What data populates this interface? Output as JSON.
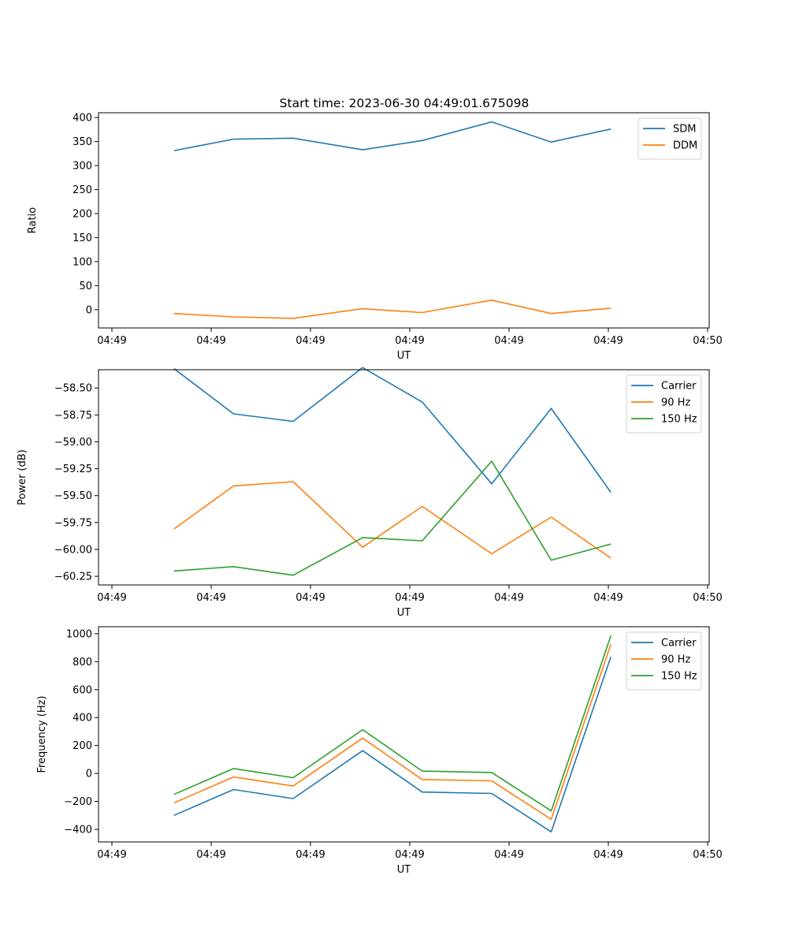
{
  "title": "Start time: 2023-06-30 04:49:01.675098",
  "chart_data": [
    {
      "type": "line",
      "title": "Start time: 2023-06-30 04:49:01.675098",
      "xlabel": "UT",
      "ylabel": "Ratio",
      "x": [
        "04:49:02.3",
        "04:49:02.9",
        "04:49:03.5",
        "04:49:04.2",
        "04:49:04.8",
        "04:49:05.5",
        "04:49:06.1",
        "04:49:06.7"
      ],
      "xlim": [
        "04:49:01.675",
        "04:49:07.675"
      ],
      "xticks": [
        "04:49",
        "04:49",
        "04:49",
        "04:49",
        "04:49",
        "04:49",
        "04:50"
      ],
      "ylim": [
        -38,
        410
      ],
      "yticks": [
        "0",
        "50",
        "100",
        "150",
        "200",
        "250",
        "300",
        "350",
        "400"
      ],
      "ytick_values": [
        0,
        50,
        100,
        150,
        200,
        250,
        300,
        350,
        400
      ],
      "legend": "top-right",
      "grid": false,
      "series": [
        {
          "name": "SDM",
          "color": "#1f77b4",
          "values": [
            331,
            355,
            357,
            333,
            352,
            391,
            349,
            376
          ]
        },
        {
          "name": "DDM",
          "color": "#ff7f0e",
          "values": [
            -8,
            -15,
            -18,
            2,
            -6,
            20,
            -8,
            3
          ]
        }
      ]
    },
    {
      "type": "line",
      "xlabel": "UT",
      "ylabel": "Power (dB)",
      "x": [
        "04:49:02.3",
        "04:49:02.9",
        "04:49:03.5",
        "04:49:04.2",
        "04:49:04.8",
        "04:49:05.5",
        "04:49:06.1",
        "04:49:06.7"
      ],
      "xlim": [
        "04:49:01.675",
        "04:49:07.675"
      ],
      "xticks": [
        "04:49",
        "04:49",
        "04:49",
        "04:49",
        "04:49",
        "04:49",
        "04:50"
      ],
      "ylim": [
        -60.33,
        -58.33
      ],
      "yticks": [
        "−58.50",
        "−58.75",
        "−59.00",
        "−59.25",
        "−59.50",
        "−59.75",
        "−60.00",
        "−60.25"
      ],
      "ytick_values": [
        -58.5,
        -58.75,
        -59.0,
        -59.25,
        -59.5,
        -59.75,
        -60.0,
        -60.25
      ],
      "legend": "top-right",
      "grid": false,
      "series": [
        {
          "name": "Carrier",
          "color": "#1f77b4",
          "values": [
            -58.32,
            -58.74,
            -58.81,
            -58.31,
            -58.63,
            -59.39,
            -58.69,
            -59.47
          ]
        },
        {
          "name": "90 Hz",
          "color": "#ff7f0e",
          "values": [
            -59.81,
            -59.41,
            -59.37,
            -59.98,
            -59.6,
            -60.04,
            -59.7,
            -60.08
          ]
        },
        {
          "name": "150 Hz",
          "color": "#2ca02c",
          "values": [
            -60.2,
            -60.16,
            -60.24,
            -59.89,
            -59.92,
            -59.18,
            -60.1,
            -59.95
          ]
        }
      ]
    },
    {
      "type": "line",
      "xlabel": "UT",
      "ylabel": "Frequency (Hz)",
      "x": [
        "04:49:02.3",
        "04:49:02.9",
        "04:49:03.5",
        "04:49:04.2",
        "04:49:04.8",
        "04:49:05.5",
        "04:49:06.1",
        "04:49:06.7"
      ],
      "xlim": [
        "04:49:01.675",
        "04:49:07.675"
      ],
      "xticks": [
        "04:49",
        "04:49",
        "04:49",
        "04:49",
        "04:49",
        "04:49",
        "04:50"
      ],
      "ylim": [
        -490,
        1050
      ],
      "yticks": [
        "−400",
        "−200",
        "0",
        "200",
        "400",
        "600",
        "800",
        "1000"
      ],
      "ytick_values": [
        -400,
        -200,
        0,
        200,
        400,
        600,
        800,
        1000
      ],
      "legend": "top-right",
      "grid": false,
      "series": [
        {
          "name": "Carrier",
          "color": "#1f77b4",
          "values": [
            -300,
            -115,
            -180,
            163,
            -133,
            -143,
            -418,
            835
          ]
        },
        {
          "name": "90 Hz",
          "color": "#ff7f0e",
          "values": [
            -210,
            -25,
            -90,
            253,
            -43,
            -53,
            -328,
            925
          ]
        },
        {
          "name": "150 Hz",
          "color": "#2ca02c",
          "values": [
            -150,
            35,
            -30,
            313,
            17,
            7,
            -268,
            985
          ]
        }
      ]
    }
  ]
}
